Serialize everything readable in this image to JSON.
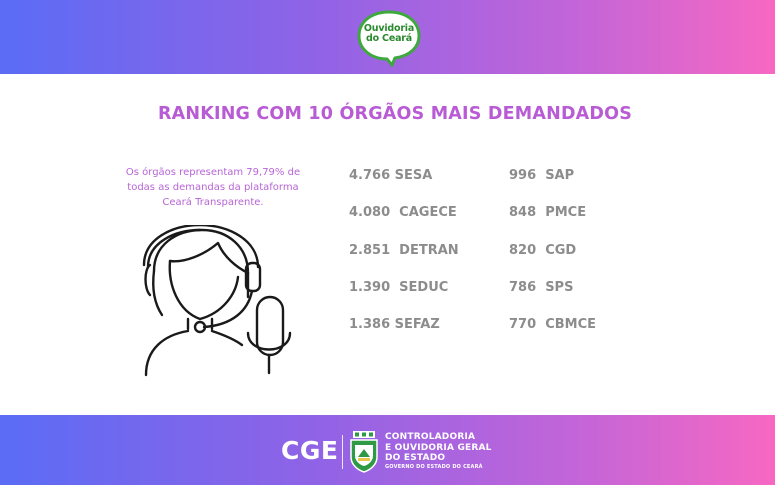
{
  "header": {
    "logo_line1": "Ouvidoria",
    "logo_line2": "do Ceará"
  },
  "title": "RANKING COM 10 ÓRGÃOS MAIS DEMANDADOS",
  "description": "Os órgãos representam 79,79% de todas as demandas da plataforma Ceará Transparente.",
  "ranking": {
    "column1": [
      {
        "text": "4.766 SESA"
      },
      {
        "text": "4.080  CAGECE"
      },
      {
        "text": "2.851  DETRAN"
      },
      {
        "text": "1.390  SEDUC"
      },
      {
        "text": "1.386 SEFAZ"
      }
    ],
    "column2": [
      {
        "text": "996  SAP"
      },
      {
        "text": "848  PMCE"
      },
      {
        "text": "820  CGD"
      },
      {
        "text": "786  SPS"
      },
      {
        "text": "770  CBMCE"
      }
    ]
  },
  "footer": {
    "abbreviation": "CGE",
    "org_line1": "CONTROLADORIA",
    "org_line2": "E OUVIDORIA GERAL",
    "org_line3": "DO ESTADO",
    "government": "GOVERNO DO ESTADO DO CEARÁ"
  },
  "colors": {
    "gradient_start": "#5b6cf5",
    "gradient_end": "#f768c2",
    "title": "#b85bd4",
    "ranking_text": "#8c8c8c",
    "logo_green": "#2a8a2e"
  },
  "icons": {
    "illustration": "call-center-agent-headset-icon",
    "footer_emblem": "ceara-coat-of-arms-icon"
  }
}
